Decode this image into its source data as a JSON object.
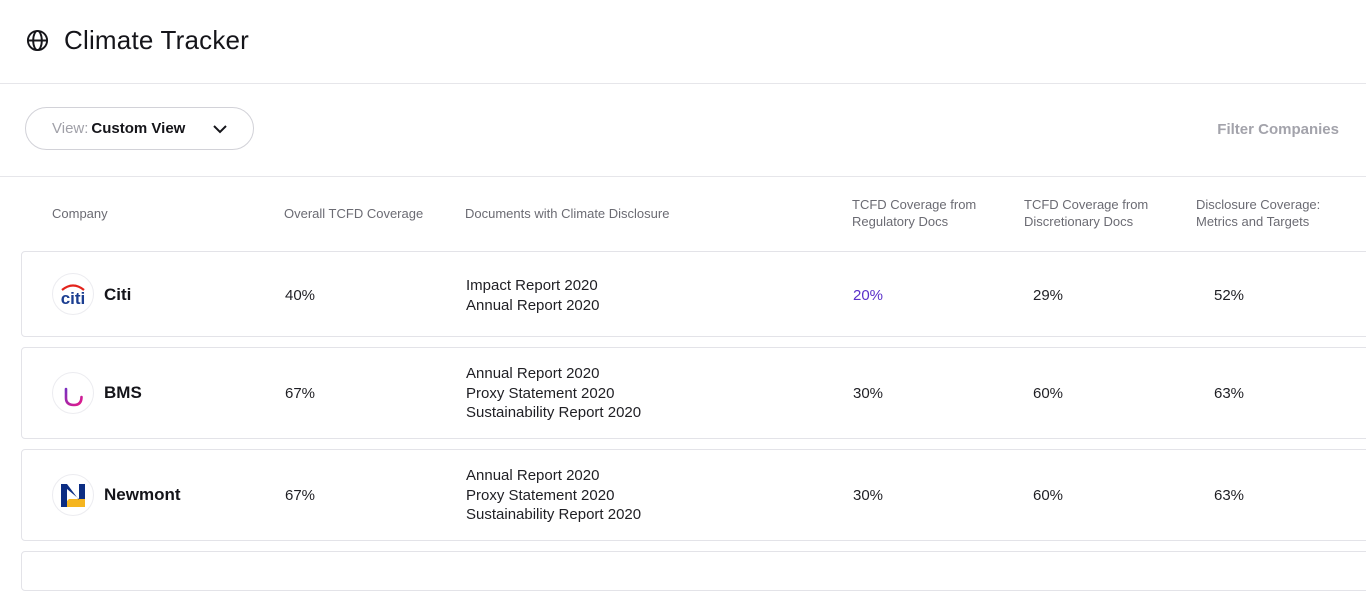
{
  "app": {
    "title": "Climate Tracker",
    "icon": "globe-icon"
  },
  "toolbar": {
    "view_prefix": "View:",
    "view_value": "Custom View",
    "filter_label": "Filter Companies"
  },
  "table": {
    "columns": [
      "Company",
      "Overall TCFD Coverage",
      "Documents with Climate Disclosure",
      "TCFD Coverage from Regulatory Docs",
      "TCFD Coverage from Discretionary Docs",
      "Disclosure Coverage: Metrics and Targets"
    ],
    "rows": [
      {
        "company": "Citi",
        "logo": "citi-logo",
        "overall": "40%",
        "documents": [
          "Impact Report 2020",
          "Annual Report 2020"
        ],
        "regulatory": "20%",
        "discretionary": "29%",
        "metrics": "52%"
      },
      {
        "company": "BMS",
        "logo": "bms-logo",
        "overall": "67%",
        "documents": [
          "Annual Report 2020",
          "Proxy Statement 2020",
          "Sustainability Report 2020"
        ],
        "regulatory": "30%",
        "discretionary": "60%",
        "metrics": "63%"
      },
      {
        "company": "Newmont",
        "logo": "newmont-logo",
        "overall": "67%",
        "documents": [
          "Annual Report 2020",
          "Proxy Statement 2020",
          "Sustainability Report 2020"
        ],
        "regulatory": "30%",
        "discretionary": "60%",
        "metrics": "63%"
      }
    ]
  },
  "colors": {
    "accent": "#5a2fc9",
    "border": "#e3e3e8",
    "muted": "#a0a0a8"
  }
}
